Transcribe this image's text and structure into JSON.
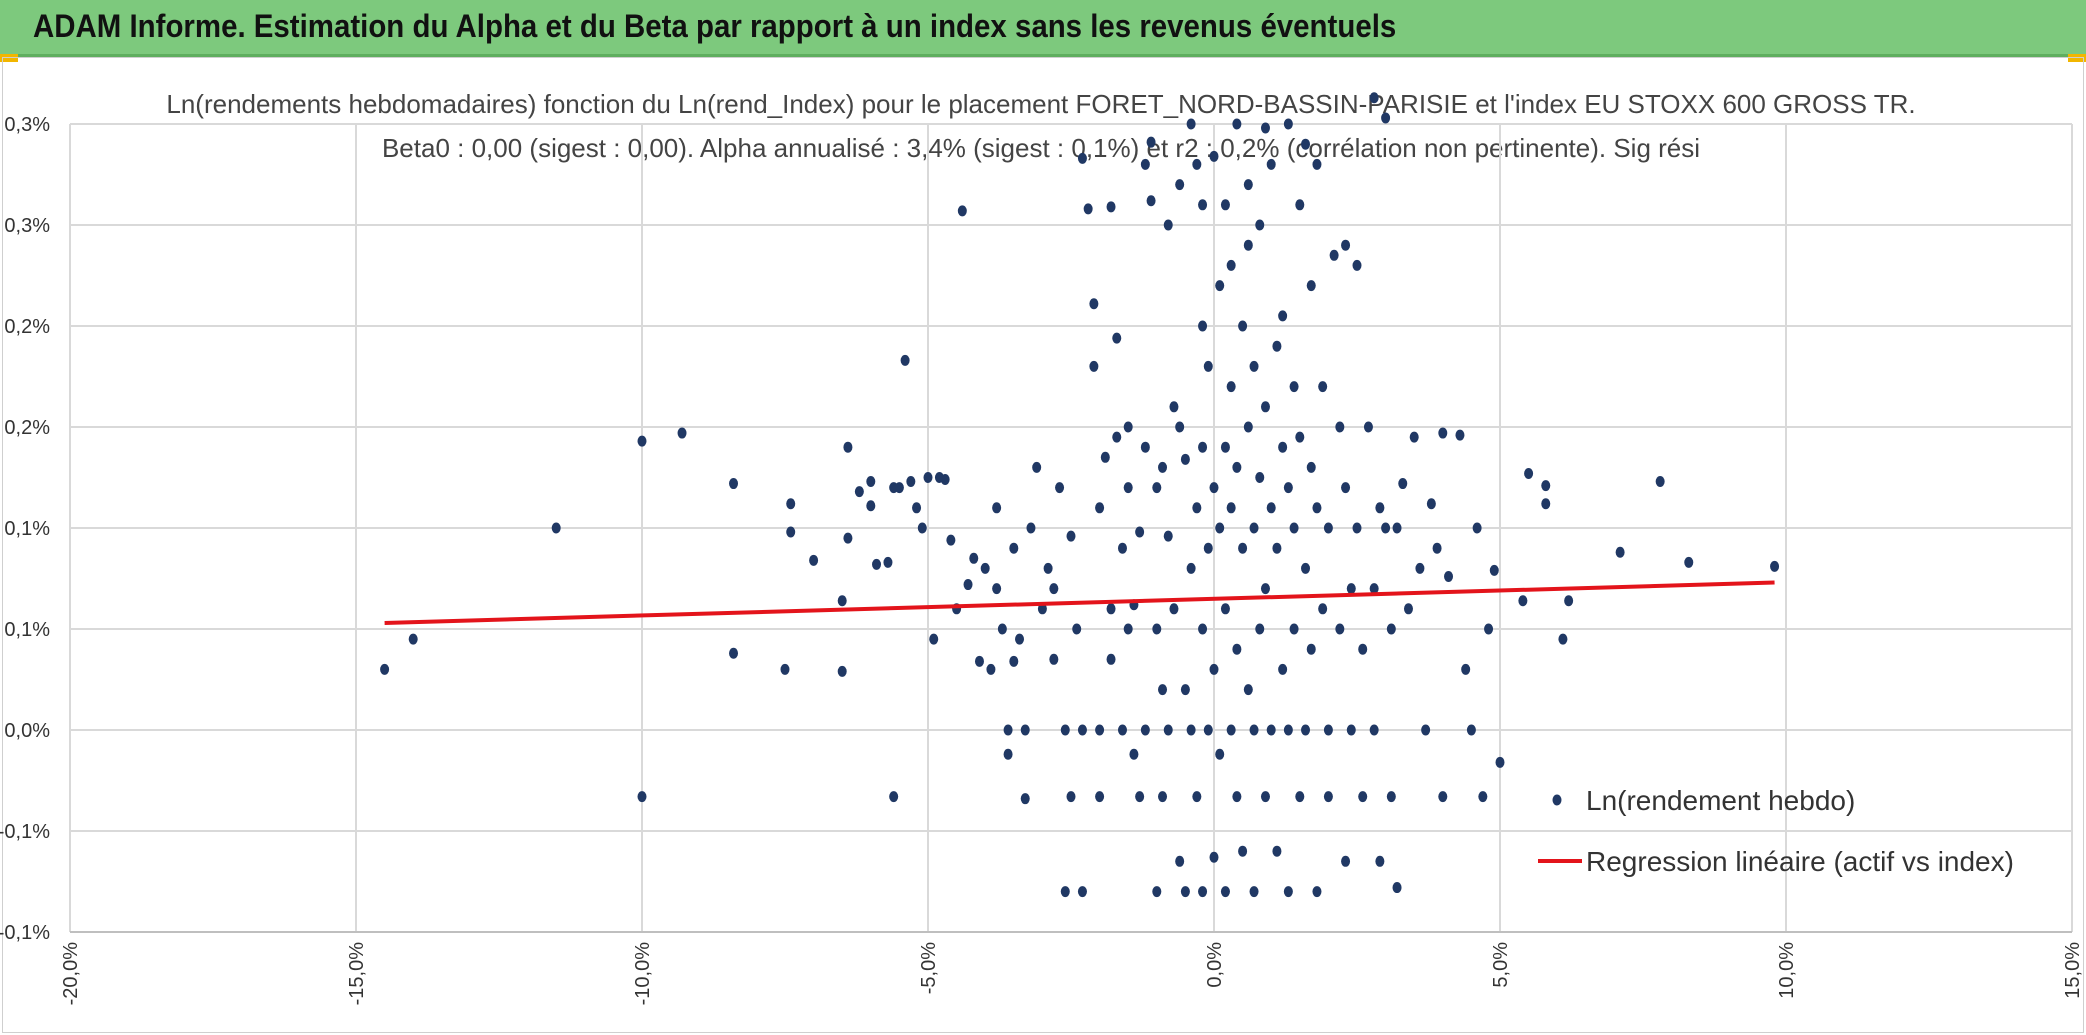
{
  "header": {
    "title": "ADAM Informe. Estimation du Alpha et du Beta par rapport à un index sans les revenus éventuels"
  },
  "chart_data": {
    "type": "scatter",
    "title_line1": "Ln(rendements hebdomadaires) fonction du Ln(rend_Index) pour le placement FORET_NORD-BASSIN-PARISIE et l'index EU STOXX 600 GROSS TR.",
    "title_line2": "Beta0 : 0,00 (sigest : 0,00). Alpha annualisé : 3,4% (sigest : 0,1%) et r2 : 0,2% (corrélation non pertinente). Sig rési",
    "xlabel": "",
    "ylabel": "",
    "xlim": [
      -20,
      15
    ],
    "ylim": [
      -0.1,
      0.3
    ],
    "x_tick_values": [
      -20,
      -15,
      -10,
      -5,
      0,
      5,
      10,
      15
    ],
    "x_tick_labels": [
      "-20,0%",
      "-15,0%",
      "-10,0%",
      "-5,0%",
      "0,0%",
      "5,0%",
      "10,0%",
      "15,0%"
    ],
    "y_tick_values": [
      -0.1,
      -0.05,
      0,
      0.05,
      0.1,
      0.15,
      0.2,
      0.25,
      0.3
    ],
    "y_tick_labels": [
      "-0,1%",
      "-0,1%",
      "0,0%",
      "0,1%",
      "0,1%",
      "0,2%",
      "0,2%",
      "0,3%",
      "0,3%"
    ],
    "grid": true,
    "legend_position": "bottom-right",
    "series": [
      {
        "name": "Ln(rendement hebdo)",
        "kind": "scatter",
        "color": "#203864",
        "points": [
          [
            -14.5,
            0.03
          ],
          [
            -14.0,
            0.045
          ],
          [
            -11.5,
            0.1
          ],
          [
            -10.0,
            0.143
          ],
          [
            -10.0,
            -0.033
          ],
          [
            -9.3,
            0.147
          ],
          [
            -8.4,
            0.122
          ],
          [
            -8.4,
            0.038
          ],
          [
            -7.5,
            0.03
          ],
          [
            -7.4,
            0.112
          ],
          [
            -7.4,
            0.098
          ],
          [
            -7.0,
            0.084
          ],
          [
            -6.5,
            0.064
          ],
          [
            -6.5,
            0.029
          ],
          [
            -6.4,
            0.14
          ],
          [
            -6.4,
            0.095
          ],
          [
            -6.2,
            0.118
          ],
          [
            -6.0,
            0.123
          ],
          [
            -6.0,
            0.111
          ],
          [
            -5.9,
            0.082
          ],
          [
            -5.7,
            0.083
          ],
          [
            -5.6,
            -0.033
          ],
          [
            -5.6,
            0.12
          ],
          [
            -5.5,
            0.12
          ],
          [
            -5.4,
            0.183
          ],
          [
            -5.3,
            0.123
          ],
          [
            -5.2,
            0.11
          ],
          [
            -5.1,
            0.1
          ],
          [
            -5.0,
            0.125
          ],
          [
            -4.9,
            0.045
          ],
          [
            -4.8,
            0.125
          ],
          [
            -4.7,
            0.124
          ],
          [
            -4.6,
            0.094
          ],
          [
            -4.5,
            0.06
          ],
          [
            -4.4,
            0.257
          ],
          [
            -4.3,
            0.072
          ],
          [
            -4.2,
            0.085
          ],
          [
            -4.1,
            0.034
          ],
          [
            -4.0,
            0.08
          ],
          [
            -3.9,
            0.03
          ],
          [
            -3.8,
            0.11
          ],
          [
            -3.8,
            0.07
          ],
          [
            -3.7,
            0.05
          ],
          [
            -3.6,
            0.0
          ],
          [
            -3.6,
            -0.012
          ],
          [
            -3.5,
            0.09
          ],
          [
            -3.5,
            0.034
          ],
          [
            -3.4,
            0.045
          ],
          [
            -3.3,
            0.0
          ],
          [
            -3.3,
            -0.034
          ],
          [
            -3.2,
            0.1
          ],
          [
            -3.1,
            0.13
          ],
          [
            -3.0,
            0.06
          ],
          [
            -2.9,
            0.08
          ],
          [
            -2.8,
            0.035
          ],
          [
            -2.8,
            0.07
          ],
          [
            -2.7,
            0.12
          ],
          [
            -2.6,
            0.0
          ],
          [
            -2.6,
            -0.08
          ],
          [
            -2.5,
            0.096
          ],
          [
            -2.5,
            -0.033
          ],
          [
            -2.4,
            0.05
          ],
          [
            -2.3,
            0.283
          ],
          [
            -2.3,
            0.0
          ],
          [
            -2.3,
            -0.08
          ],
          [
            -2.2,
            0.258
          ],
          [
            -2.1,
            0.211
          ],
          [
            -2.0,
            0.11
          ],
          [
            -2.0,
            0.0
          ],
          [
            -2.0,
            -0.033
          ],
          [
            -1.9,
            0.135
          ],
          [
            -1.8,
            0.035
          ],
          [
            -1.8,
            0.06
          ],
          [
            -1.8,
            0.259
          ],
          [
            -1.7,
            0.194
          ],
          [
            -1.7,
            0.145
          ],
          [
            -1.6,
            0.09
          ],
          [
            -1.6,
            0.0
          ],
          [
            -1.5,
            0.15
          ],
          [
            -1.5,
            0.12
          ],
          [
            -1.4,
            0.062
          ],
          [
            -1.4,
            -0.012
          ],
          [
            -1.3,
            0.098
          ],
          [
            -1.3,
            -0.033
          ],
          [
            -1.2,
            0.14
          ],
          [
            -1.2,
            0.0
          ],
          [
            -1.1,
            0.262
          ],
          [
            -1.1,
            0.291
          ],
          [
            -1.0,
            0.12
          ],
          [
            -1.0,
            0.05
          ],
          [
            -1.0,
            -0.08
          ],
          [
            -0.9,
            0.02
          ],
          [
            -0.9,
            -0.033
          ],
          [
            -0.8,
            0.25
          ],
          [
            -0.8,
            0.096
          ],
          [
            -0.8,
            0.0
          ],
          [
            -0.7,
            0.16
          ],
          [
            -0.7,
            0.06
          ],
          [
            -0.6,
            0.27
          ],
          [
            -0.6,
            0.15
          ],
          [
            -0.6,
            -0.065
          ],
          [
            -0.5,
            0.134
          ],
          [
            -0.5,
            0.02
          ],
          [
            -0.5,
            -0.08
          ],
          [
            -0.4,
            0.3
          ],
          [
            -0.4,
            0.08
          ],
          [
            -0.4,
            0.0
          ],
          [
            -0.3,
            0.28
          ],
          [
            -0.3,
            0.11
          ],
          [
            -0.3,
            -0.033
          ],
          [
            -0.2,
            0.2
          ],
          [
            -0.2,
            0.14
          ],
          [
            -0.2,
            0.05
          ],
          [
            -0.2,
            -0.08
          ],
          [
            -0.1,
            0.18
          ],
          [
            -0.1,
            0.09
          ],
          [
            -0.1,
            0.0
          ],
          [
            0.0,
            0.284
          ],
          [
            0.0,
            0.12
          ],
          [
            0.0,
            0.03
          ],
          [
            0.0,
            -0.063
          ],
          [
            0.1,
            0.22
          ],
          [
            0.1,
            0.1
          ],
          [
            0.1,
            -0.012
          ],
          [
            0.2,
            0.26
          ],
          [
            0.2,
            0.14
          ],
          [
            0.2,
            0.06
          ],
          [
            0.2,
            -0.08
          ],
          [
            0.3,
            0.17
          ],
          [
            0.3,
            0.11
          ],
          [
            0.3,
            0.0
          ],
          [
            0.4,
            0.3
          ],
          [
            0.4,
            0.13
          ],
          [
            0.4,
            0.04
          ],
          [
            0.4,
            -0.033
          ],
          [
            0.5,
            0.2
          ],
          [
            0.5,
            0.09
          ],
          [
            0.5,
            -0.06
          ],
          [
            0.6,
            0.27
          ],
          [
            0.6,
            0.15
          ],
          [
            0.6,
            0.02
          ],
          [
            0.7,
            0.18
          ],
          [
            0.7,
            0.1
          ],
          [
            0.7,
            0.0
          ],
          [
            0.7,
            -0.08
          ],
          [
            0.8,
            0.25
          ],
          [
            0.8,
            0.125
          ],
          [
            0.8,
            0.05
          ],
          [
            0.9,
            0.16
          ],
          [
            0.9,
            0.07
          ],
          [
            0.9,
            -0.033
          ],
          [
            1.0,
            0.28
          ],
          [
            1.0,
            0.11
          ],
          [
            1.0,
            0.0
          ],
          [
            1.1,
            0.19
          ],
          [
            1.1,
            0.09
          ],
          [
            1.1,
            -0.06
          ],
          [
            1.2,
            0.14
          ],
          [
            1.2,
            0.03
          ],
          [
            1.3,
            0.3
          ],
          [
            1.3,
            0.12
          ],
          [
            1.3,
            0.0
          ],
          [
            1.3,
            -0.08
          ],
          [
            1.4,
            0.17
          ],
          [
            1.4,
            0.1
          ],
          [
            1.4,
            0.05
          ],
          [
            1.5,
            0.26
          ],
          [
            1.5,
            0.145
          ],
          [
            1.5,
            -0.033
          ],
          [
            1.6,
            0.08
          ],
          [
            1.6,
            0.0
          ],
          [
            1.7,
            0.22
          ],
          [
            1.7,
            0.13
          ],
          [
            1.7,
            0.04
          ],
          [
            1.8,
            0.28
          ],
          [
            1.8,
            0.11
          ],
          [
            1.8,
            -0.08
          ],
          [
            1.9,
            0.17
          ],
          [
            1.9,
            0.06
          ],
          [
            2.0,
            0.1
          ],
          [
            2.0,
            0.0
          ],
          [
            2.0,
            -0.033
          ],
          [
            2.1,
            0.235
          ],
          [
            2.2,
            0.15
          ],
          [
            2.2,
            0.05
          ],
          [
            2.3,
            0.24
          ],
          [
            2.3,
            0.12
          ],
          [
            2.3,
            -0.065
          ],
          [
            2.4,
            0.07
          ],
          [
            2.4,
            0.0
          ],
          [
            2.5,
            0.23
          ],
          [
            2.5,
            0.1
          ],
          [
            2.6,
            0.04
          ],
          [
            2.6,
            -0.033
          ],
          [
            2.7,
            0.15
          ],
          [
            2.8,
            0.07
          ],
          [
            2.8,
            0.0
          ],
          [
            2.8,
            0.313
          ],
          [
            2.9,
            0.11
          ],
          [
            2.9,
            -0.065
          ],
          [
            3.0,
            0.303
          ],
          [
            3.0,
            0.1
          ],
          [
            3.1,
            0.05
          ],
          [
            3.1,
            -0.033
          ],
          [
            3.2,
            0.1
          ],
          [
            3.2,
            -0.078
          ],
          [
            3.3,
            0.122
          ],
          [
            3.4,
            0.06
          ],
          [
            3.5,
            0.145
          ],
          [
            3.6,
            0.08
          ],
          [
            3.7,
            0.0
          ],
          [
            3.8,
            0.112
          ],
          [
            3.9,
            0.09
          ],
          [
            4.0,
            0.147
          ],
          [
            4.0,
            -0.033
          ],
          [
            4.1,
            0.076
          ],
          [
            4.3,
            0.146
          ],
          [
            4.4,
            0.03
          ],
          [
            4.5,
            0.0
          ],
          [
            4.6,
            0.1
          ],
          [
            4.7,
            -0.033
          ],
          [
            4.8,
            0.05
          ],
          [
            4.9,
            0.079
          ],
          [
            5.0,
            -0.016
          ],
          [
            5.4,
            0.064
          ],
          [
            5.5,
            0.127
          ],
          [
            5.8,
            0.121
          ],
          [
            5.8,
            0.112
          ],
          [
            6.1,
            0.045
          ],
          [
            6.2,
            0.064
          ],
          [
            7.1,
            0.088
          ],
          [
            7.8,
            0.123
          ],
          [
            8.3,
            0.083
          ],
          [
            9.8,
            0.081
          ],
          [
            -2.1,
            0.18
          ],
          [
            -1.5,
            0.05
          ],
          [
            -0.9,
            0.13
          ],
          [
            0.3,
            0.23
          ],
          [
            1.2,
            0.205
          ],
          [
            0.9,
            0.298
          ],
          [
            -0.2,
            0.26
          ],
          [
            0.6,
            0.24
          ],
          [
            -1.2,
            0.28
          ],
          [
            1.6,
            0.29
          ]
        ]
      },
      {
        "name": "Regression linéaire (actif vs index)",
        "kind": "line",
        "color": "#e3141b",
        "points": [
          [
            -14.5,
            0.053
          ],
          [
            9.8,
            0.073
          ]
        ]
      }
    ]
  }
}
